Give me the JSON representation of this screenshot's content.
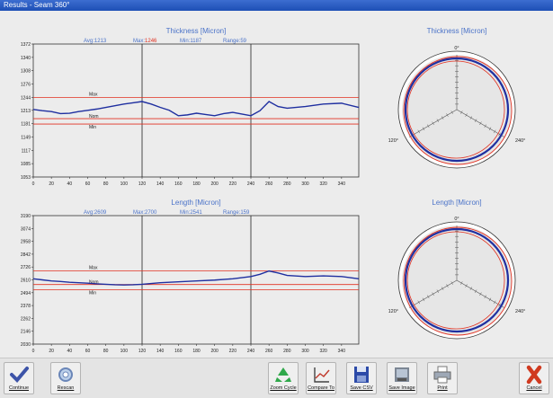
{
  "window": {
    "title": "Results - Seam 360°"
  },
  "thickness_header": {
    "title": "Thickness [Micron]",
    "avg": "Avg:1213",
    "max_label": "Max:",
    "max_value": "1246",
    "min": "Min:1187",
    "range": "Range:59"
  },
  "length_header": {
    "title": "Length [Micron]",
    "avg": "Avg:2609",
    "max": "Max:2700",
    "min": "Min:2541",
    "range": "Range:159"
  },
  "polar_thickness": {
    "title": "Thickness [Micron]",
    "labels": [
      "0°",
      "120°",
      "240°"
    ]
  },
  "polar_length": {
    "title": "Length [Micron]",
    "labels": [
      "0°",
      "120°",
      "240°"
    ]
  },
  "ref_labels": {
    "max": "Max",
    "nom": "Nom",
    "min": "Min"
  },
  "colors": {
    "title_blue": "#4a72c8",
    "series": "#1f2fa0",
    "ref_line": "#e23020",
    "max_value": "#e03020",
    "plot_bg": "#ececec"
  },
  "chart_data": [
    {
      "type": "line",
      "title": "Thickness [Micron]",
      "xlim": [
        0,
        359
      ],
      "ylim": [
        1053,
        1372
      ],
      "x_ticks": [
        0,
        20,
        40,
        60,
        80,
        100,
        120,
        140,
        160,
        180,
        200,
        220,
        240,
        260,
        280,
        300,
        320,
        340
      ],
      "y_ticks": [
        1053,
        1085,
        1117,
        1149,
        1181,
        1213,
        1244,
        1276,
        1308,
        1340,
        1372
      ],
      "dividers": [
        120,
        240
      ],
      "reference_lines": {
        "max": 1244,
        "nom": 1193,
        "min": 1180
      },
      "series": [
        {
          "x": [
            0,
            10,
            20,
            30,
            40,
            50,
            60,
            70,
            80,
            90,
            100,
            110,
            120,
            130,
            140,
            150,
            160,
            170,
            180,
            190,
            200,
            210,
            220,
            230,
            240,
            250,
            260,
            270,
            280,
            300,
            320,
            340,
            359
          ],
          "values": [
            1215,
            1212,
            1210,
            1205,
            1206,
            1210,
            1213,
            1216,
            1220,
            1224,
            1228,
            1231,
            1234,
            1228,
            1220,
            1213,
            1200,
            1202,
            1206,
            1203,
            1200,
            1205,
            1208,
            1204,
            1200,
            1212,
            1234,
            1222,
            1218,
            1222,
            1228,
            1230,
            1220
          ]
        }
      ]
    },
    {
      "type": "line",
      "title": "Length [Micron]",
      "xlim": [
        0,
        359
      ],
      "ylim": [
        2030,
        3190
      ],
      "x_ticks": [
        0,
        20,
        40,
        60,
        80,
        100,
        120,
        140,
        160,
        180,
        200,
        220,
        240,
        260,
        280,
        300,
        320,
        340
      ],
      "y_ticks": [
        2030,
        2146,
        2262,
        2378,
        2494,
        2610,
        2726,
        2842,
        2958,
        3074,
        3190
      ],
      "dividers": [
        120,
        240
      ],
      "reference_lines": {
        "max": 2690,
        "nom": 2568,
        "min": 2522
      },
      "series": [
        {
          "x": [
            0,
            10,
            20,
            30,
            40,
            50,
            60,
            70,
            80,
            90,
            100,
            110,
            120,
            140,
            160,
            180,
            200,
            220,
            240,
            250,
            260,
            270,
            280,
            300,
            320,
            340,
            359
          ],
          "values": [
            2620,
            2610,
            2600,
            2595,
            2588,
            2584,
            2580,
            2574,
            2570,
            2566,
            2564,
            2566,
            2570,
            2584,
            2592,
            2600,
            2608,
            2620,
            2640,
            2660,
            2690,
            2672,
            2650,
            2640,
            2646,
            2640,
            2620
          ]
        }
      ]
    }
  ],
  "toolbar": {
    "continue": "Continue",
    "rescan": "Rescan",
    "zoom_cycle": "Zoom Cycle",
    "compare_to": "Compare To",
    "save_csv": "Save CSV",
    "save_image": "Save Image",
    "print": "Print",
    "cancel": "Cancel"
  }
}
